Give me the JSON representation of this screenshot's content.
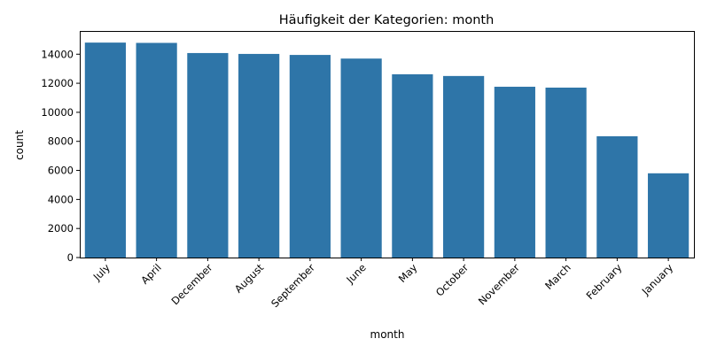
{
  "chart_data": {
    "type": "bar",
    "title": "Häufigkeit der Kategorien: month",
    "xlabel": "month",
    "ylabel": "count",
    "categories": [
      "July",
      "April",
      "December",
      "August",
      "September",
      "June",
      "May",
      "October",
      "November",
      "March",
      "February",
      "January"
    ],
    "values": [
      14800,
      14780,
      14080,
      14020,
      13950,
      13700,
      12620,
      12500,
      11760,
      11700,
      8350,
      5800
    ],
    "ylim": [
      0,
      15600
    ],
    "yticks": [
      0,
      2000,
      4000,
      6000,
      8000,
      10000,
      12000,
      14000
    ],
    "grid": false,
    "colors": {
      "bar": "#2e75a8"
    }
  }
}
